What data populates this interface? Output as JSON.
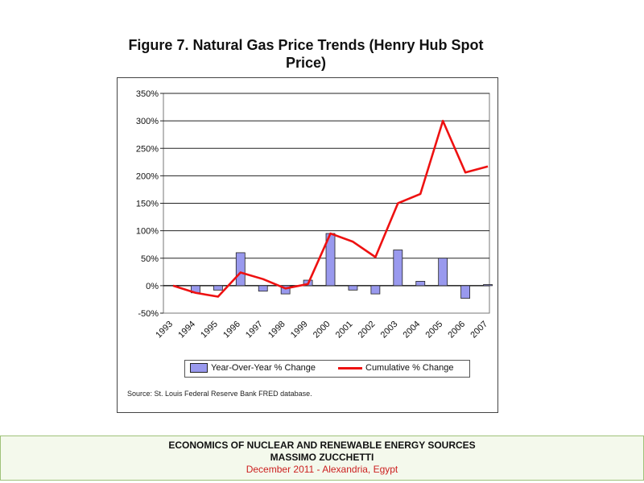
{
  "title": "Figure 7. Natural Gas Price Trends (Henry Hub Spot Price)",
  "source": "Source: St. Louis Federal Reserve Bank FRED database.",
  "footer": {
    "line1": "ECONOMICS OF NUCLEAR AND RENEWABLE ENERGY SOURCES",
    "line2": "MASSIMO ZUCCHETTI",
    "line3": "December 2011 - Alexandria, Egypt"
  },
  "colors": {
    "bar_fill": "#9999ee",
    "line": "#ee1111",
    "footer_bg": "#f4f9ec",
    "footer_border": "#9fc27a",
    "footer_date": "#cc2020"
  },
  "chart_data": {
    "type": "bar",
    "title": "Figure 7. Natural Gas Price Trends (Henry Hub Spot Price)",
    "xlabel": "",
    "ylabel": "",
    "categories": [
      "1993",
      "1994",
      "1995",
      "1996",
      "1997",
      "1998",
      "1999",
      "2000",
      "2001",
      "2002",
      "2003",
      "2004",
      "2005",
      "2006",
      "2007"
    ],
    "ylim": [
      -50,
      350
    ],
    "yticks": [
      -50,
      0,
      50,
      100,
      150,
      200,
      250,
      300,
      350
    ],
    "ytick_labels": [
      "-50%",
      "0%",
      "50%",
      "100%",
      "150%",
      "200%",
      "250%",
      "300%",
      "350%"
    ],
    "grid": true,
    "legend_position": "bottom",
    "series": [
      {
        "name": "Year-Over-Year % Change",
        "type": "bar",
        "values": [
          0,
          -13,
          -8,
          60,
          -10,
          -15,
          10,
          95,
          -8,
          -15,
          65,
          8,
          50,
          -23,
          2
        ]
      },
      {
        "name": "Cumulative % Change",
        "type": "line",
        "values": [
          0,
          -13,
          -20,
          24,
          12,
          -5,
          3,
          95,
          80,
          52,
          150,
          167,
          300,
          206,
          217
        ]
      }
    ]
  }
}
